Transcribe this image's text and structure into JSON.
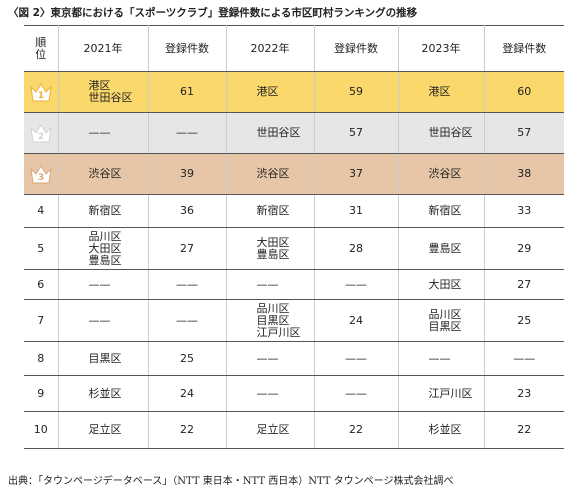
{
  "title": "〈図 2〉東京都における「スポーツクラブ」登録件数による市区町村ランキングの推移",
  "table": {
    "header": [
      [
        "順",
        "位"
      ],
      "2021年",
      "登録件数",
      "2022年",
      "登録件数",
      "2023年",
      "登録件数"
    ],
    "rows": [
      [
        1,
        [
          "港区",
          "世田谷区"
        ],
        61,
        [
          "港区"
        ],
        59,
        [
          "港区"
        ],
        60
      ],
      [
        2,
        [
          "——"
        ],
        "——",
        [
          "世田谷区"
        ],
        57,
        [
          "世田谷区"
        ],
        57
      ],
      [
        3,
        [
          "渋谷区"
        ],
        39,
        [
          "渋谷区"
        ],
        37,
        [
          "渋谷区"
        ],
        38
      ],
      [
        4,
        [
          "新宿区"
        ],
        36,
        [
          "新宿区"
        ],
        31,
        [
          "新宿区"
        ],
        33
      ],
      [
        5,
        [
          "品川区",
          "大田区",
          "豊島区"
        ],
        27,
        [
          "大田区",
          "豊島区"
        ],
        28,
        [
          "豊島区"
        ],
        29
      ],
      [
        6,
        [
          "——"
        ],
        "——",
        [
          "——"
        ],
        "——",
        [
          "大田区"
        ],
        27
      ],
      [
        7,
        [
          "——"
        ],
        "——",
        [
          "品川区",
          "目黒区",
          "江戸川区"
        ],
        24,
        [
          "品川区",
          "目黒区"
        ],
        25
      ],
      [
        8,
        [
          "目黒区"
        ],
        25,
        [
          "——"
        ],
        "——",
        [
          "——"
        ],
        "——"
      ],
      [
        9,
        [
          "杉並区"
        ],
        24,
        [
          "——"
        ],
        "——",
        [
          "江戸川区"
        ],
        23
      ],
      [
        10,
        [
          "足立区"
        ],
        22,
        [
          "足立区"
        ],
        22,
        [
          "杉並区"
        ],
        22
      ]
    ]
  },
  "footer": "出典：「タウンページデータベース」（NTT 東日本・NTT 西日本）NTT タウンページ株式会社調べ"
}
